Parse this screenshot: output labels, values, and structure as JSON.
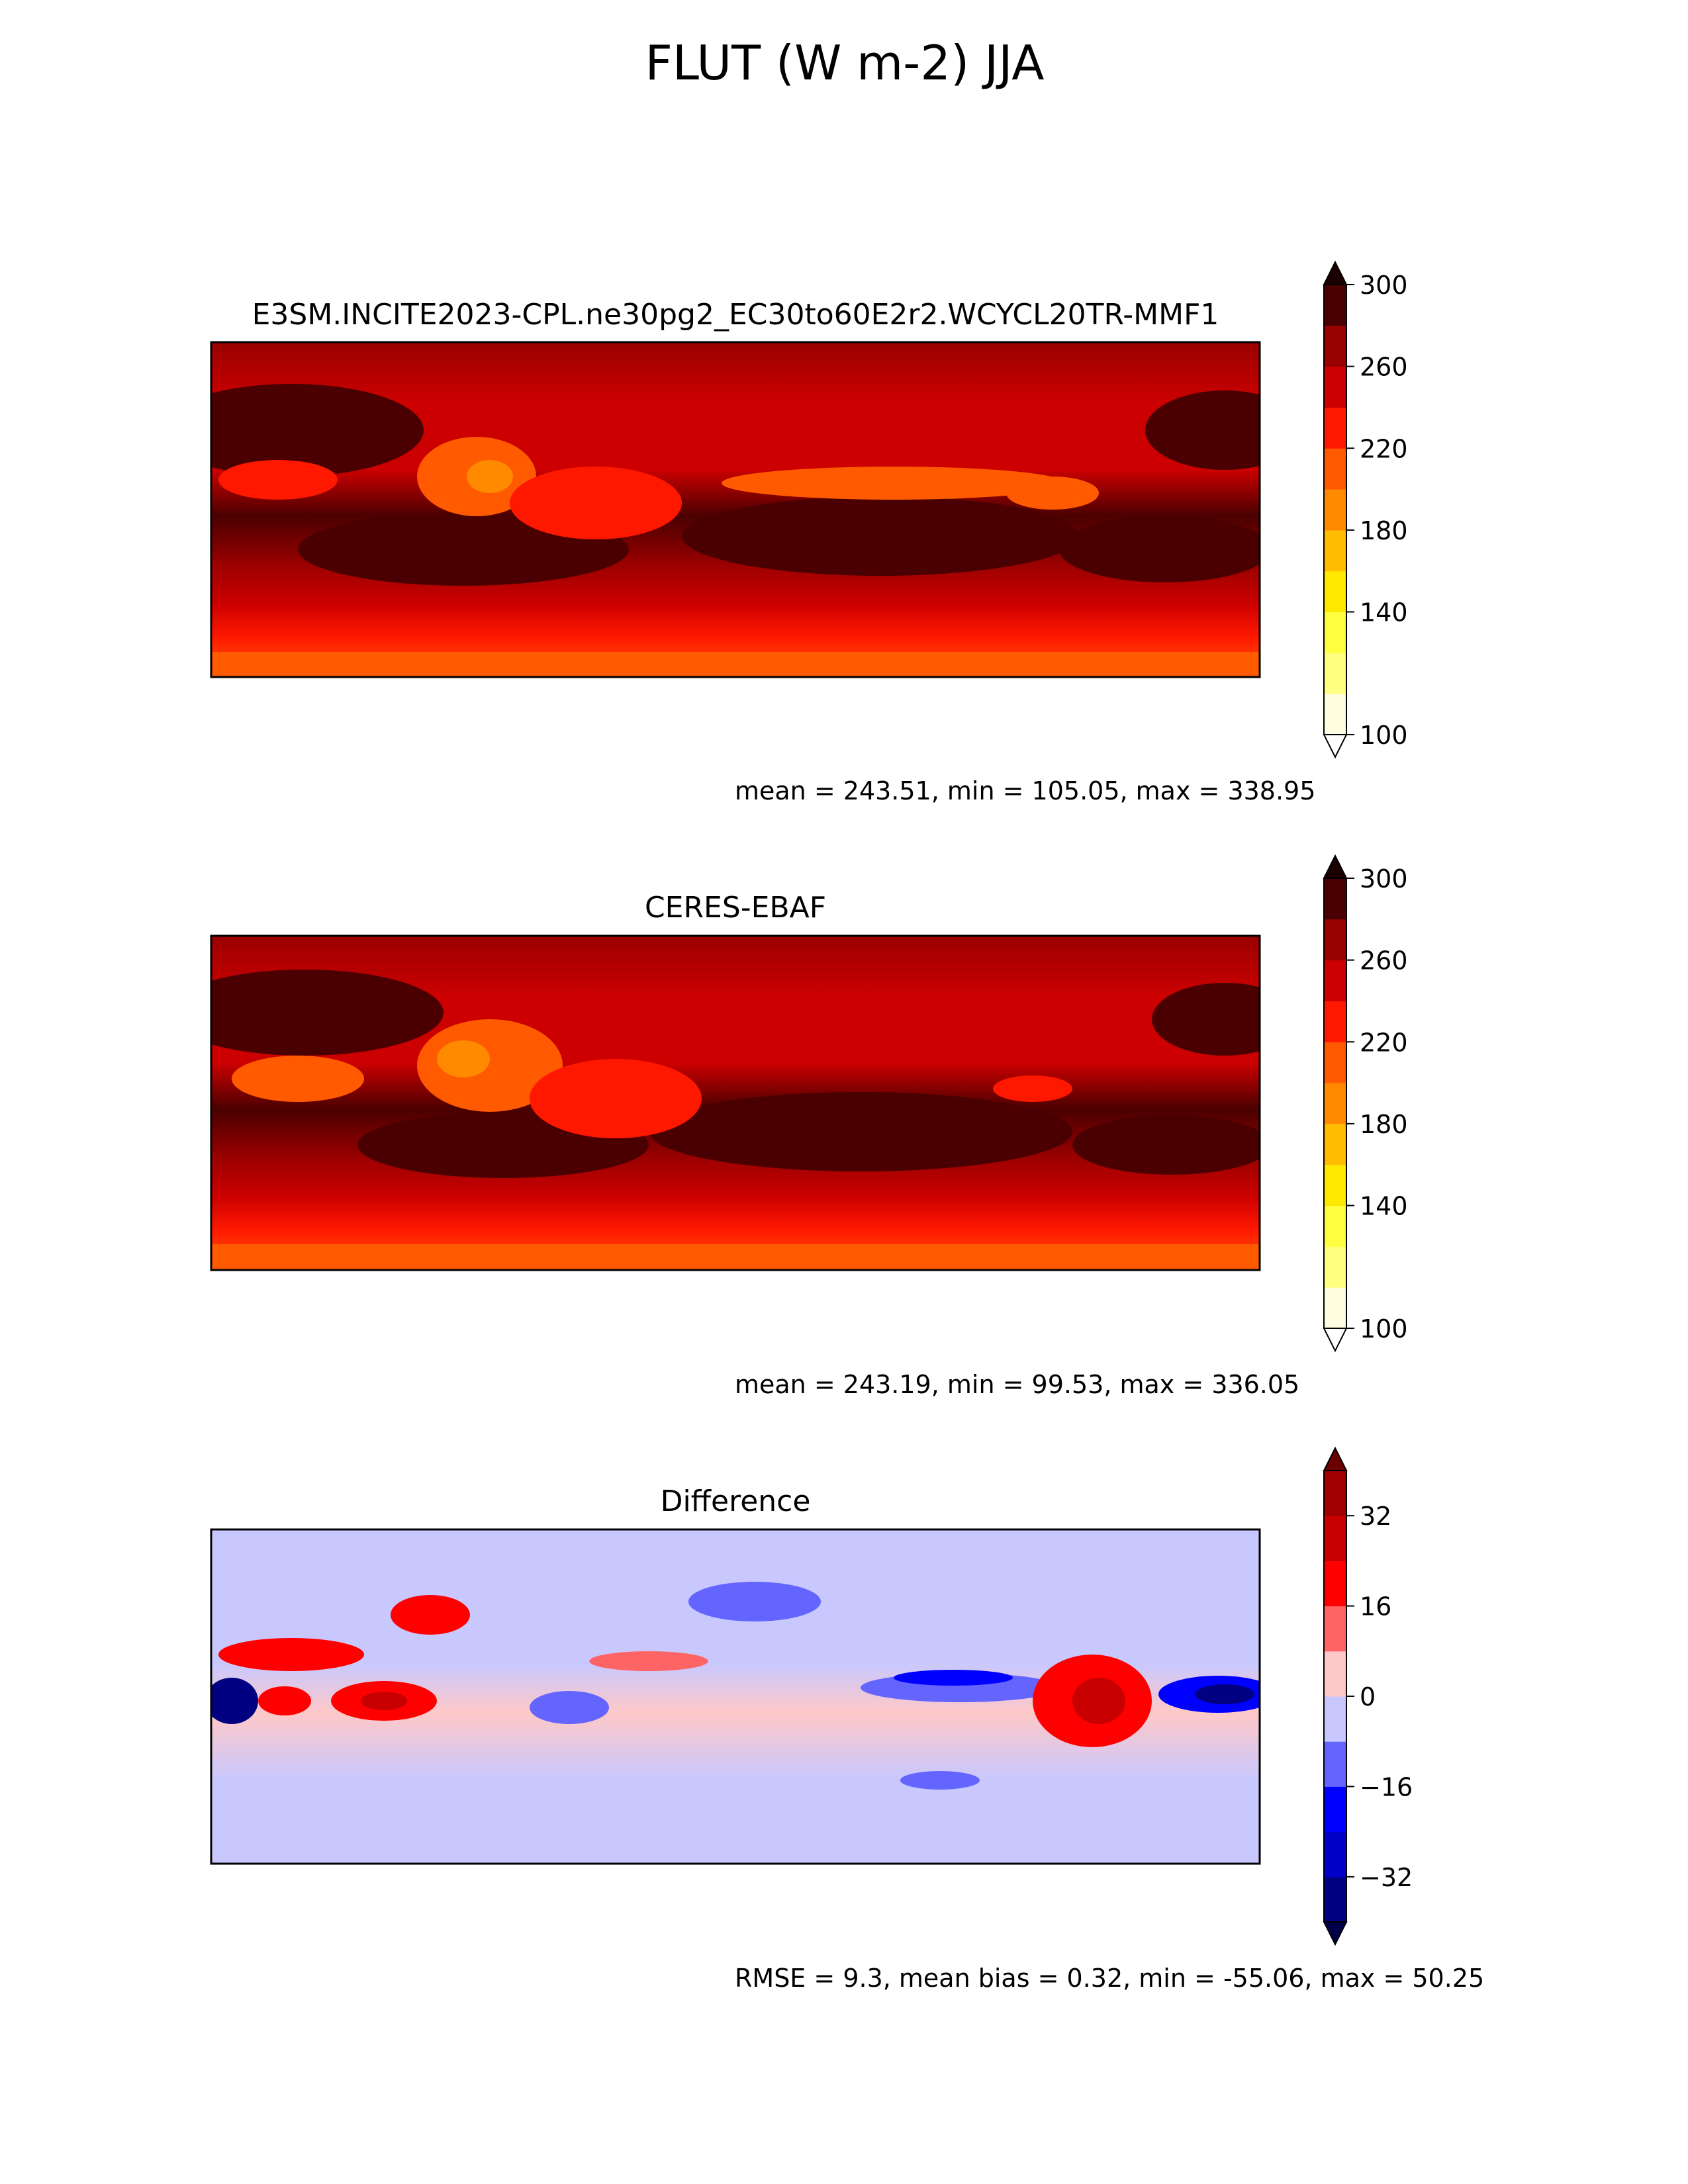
{
  "figure": {
    "title": "FLUT (W m-2) JJA"
  },
  "chart_data": [
    {
      "type": "heatmap",
      "title": "E3SM.INCITE2023-CPL.ne30pg2_EC30to60E2r2.WCYCL20TR-MMF1",
      "stats": "mean = 243.51, min = 105.05, max = 338.95",
      "colorbar": {
        "levels": [
          100,
          120,
          130,
          140,
          160,
          180,
          200,
          220,
          240,
          260,
          280,
          300
        ],
        "ticks": [
          100,
          140,
          180,
          220,
          260,
          300
        ],
        "tick_labels": [
          "100",
          "140",
          "180",
          "220",
          "260",
          "300"
        ],
        "colors": [
          "#fffde0",
          "#ffff80",
          "#ffff40",
          "#ffe800",
          "#ffbc00",
          "#ff8a00",
          "#ff5a00",
          "#ff1800",
          "#cc0000",
          "#990000",
          "#4a0000"
        ],
        "extend_low_color": "#ffffff",
        "extend_high_color": "#1a0000"
      }
    },
    {
      "type": "heatmap",
      "title": "CERES-EBAF",
      "stats": "mean = 243.19, min = 99.53, max = 336.05",
      "colorbar": {
        "levels": [
          100,
          120,
          130,
          140,
          160,
          180,
          200,
          220,
          240,
          260,
          280,
          300
        ],
        "ticks": [
          100,
          140,
          180,
          220,
          260,
          300
        ],
        "tick_labels": [
          "100",
          "140",
          "180",
          "220",
          "260",
          "300"
        ],
        "colors": [
          "#fffde0",
          "#ffff80",
          "#ffff40",
          "#ffe800",
          "#ffbc00",
          "#ff8a00",
          "#ff5a00",
          "#ff1800",
          "#cc0000",
          "#990000",
          "#4a0000"
        ],
        "extend_low_color": "#ffffff",
        "extend_high_color": "#1a0000"
      }
    },
    {
      "type": "heatmap",
      "title": "Difference",
      "stats": "RMSE = 9.3, mean bias = 0.32, min = -55.06, max = 50.25",
      "colorbar": {
        "levels": [
          -40,
          -32,
          -24,
          -16,
          -8,
          0,
          8,
          16,
          24,
          32,
          40
        ],
        "ticks": [
          -32,
          -16,
          0,
          16,
          32
        ],
        "tick_labels": [
          "−32",
          "−16",
          "0",
          "16",
          "32"
        ],
        "colors": [
          "#000080",
          "#0000c8",
          "#0000ff",
          "#6464ff",
          "#c8c8ff",
          "#ffc8c8",
          "#ff6464",
          "#ff0000",
          "#c80000",
          "#a00000"
        ],
        "extend_low_color": "#00004a",
        "extend_high_color": "#6a0000"
      }
    }
  ]
}
